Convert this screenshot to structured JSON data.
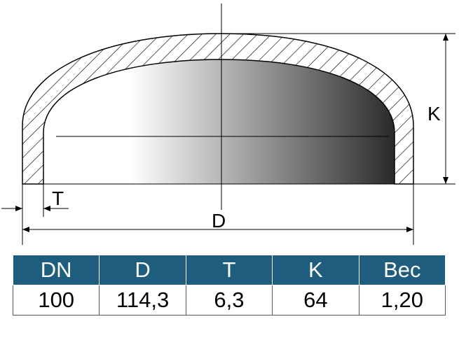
{
  "drawing": {
    "labels": {
      "K": "K",
      "T": "T",
      "D": "D"
    }
  },
  "table": {
    "header": [
      "DN",
      "D",
      "T",
      "K",
      "Вес"
    ],
    "rows": [
      [
        "100",
        "114,3",
        "6,3",
        "64",
        "1,20"
      ]
    ]
  }
}
